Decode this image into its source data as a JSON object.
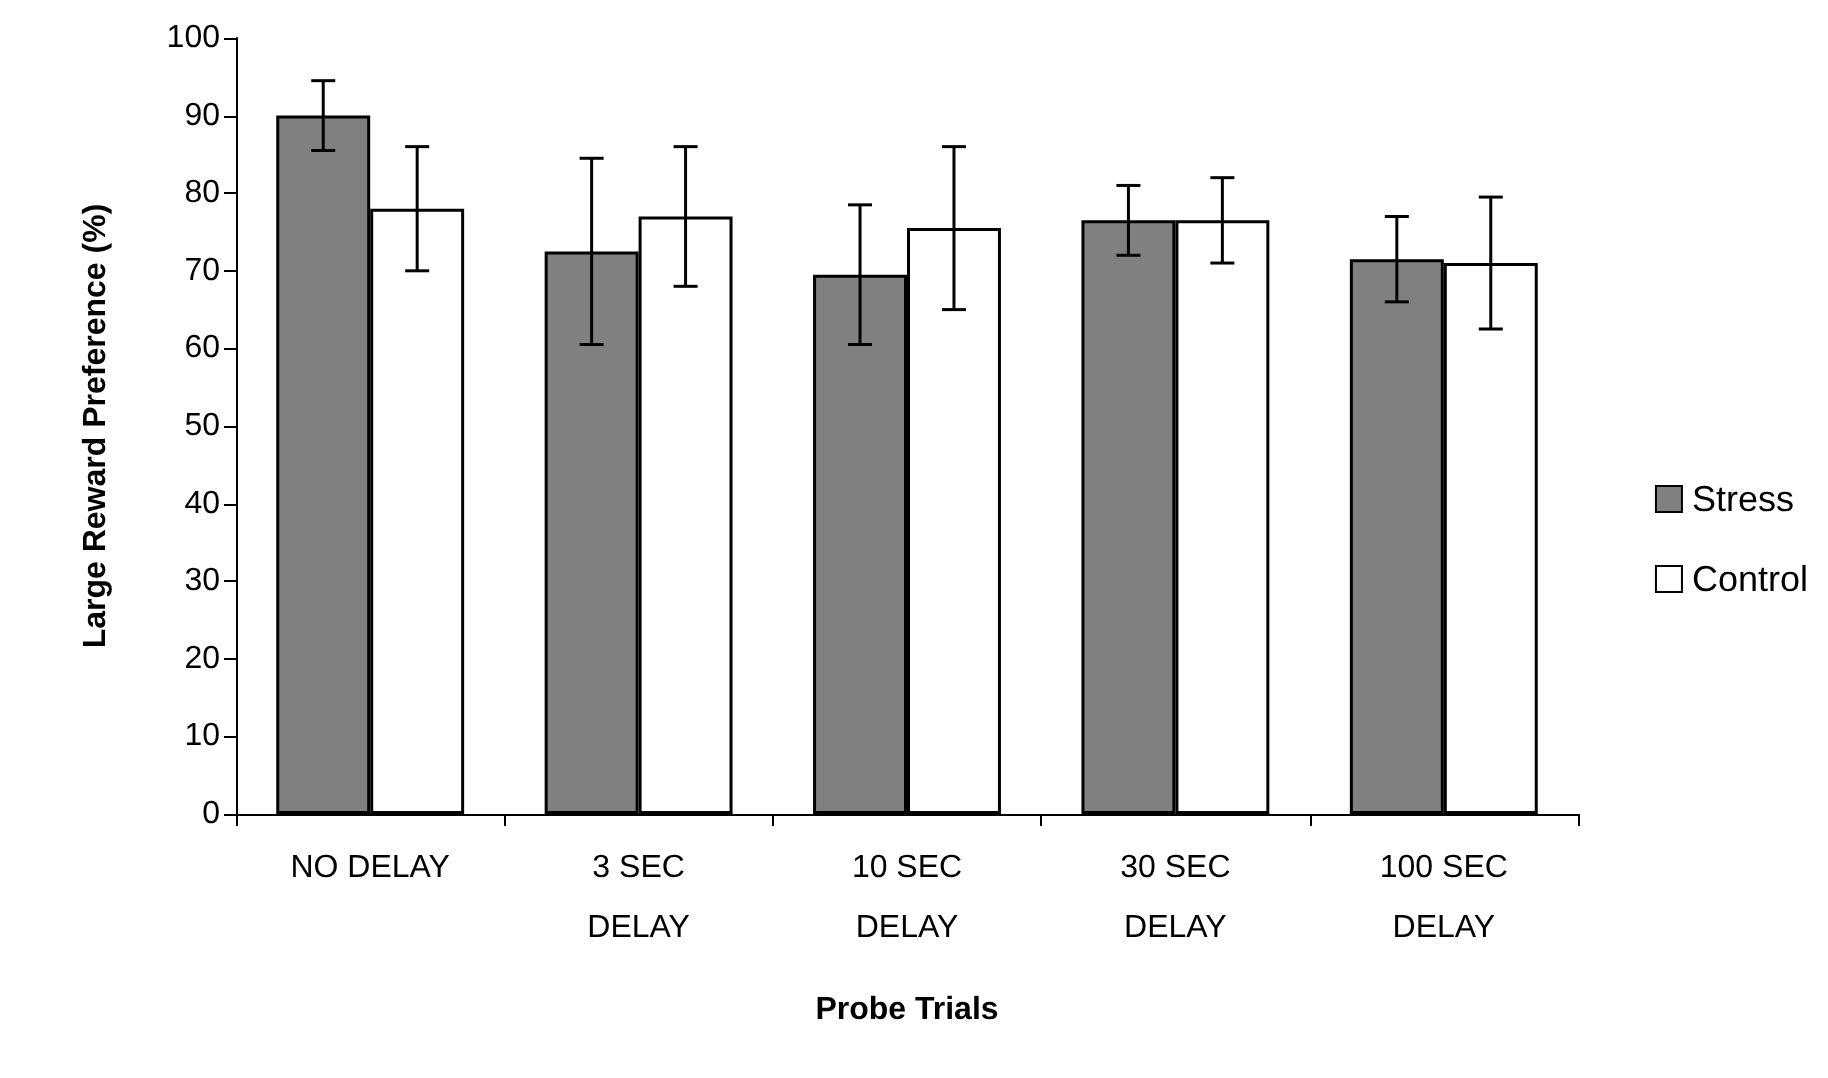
{
  "chart_data": {
    "type": "bar",
    "xlabel": "Probe Trials",
    "ylabel": "Large Reward Preference (%)",
    "categories": [
      "NO DELAY",
      "3 SEC\nDELAY",
      "10 SEC\nDELAY",
      "30 SEC\nDELAY",
      "100 SEC\nDELAY"
    ],
    "series": [
      {
        "name": "Stress",
        "color": "#808080",
        "values": [
          90,
          72.5,
          69.5,
          76.5,
          71.5
        ],
        "errors": [
          4.5,
          12,
          9,
          4.5,
          5.5
        ]
      },
      {
        "name": "Control",
        "color": "#ffffff",
        "values": [
          78,
          77,
          75.5,
          76.5,
          71
        ],
        "errors": [
          8,
          9,
          10.5,
          5.5,
          8.5
        ]
      }
    ],
    "ylim": [
      0,
      100
    ],
    "yticks": [
      0,
      10,
      20,
      30,
      40,
      50,
      60,
      70,
      80,
      90,
      100
    ],
    "grid": false,
    "legend": "right"
  }
}
